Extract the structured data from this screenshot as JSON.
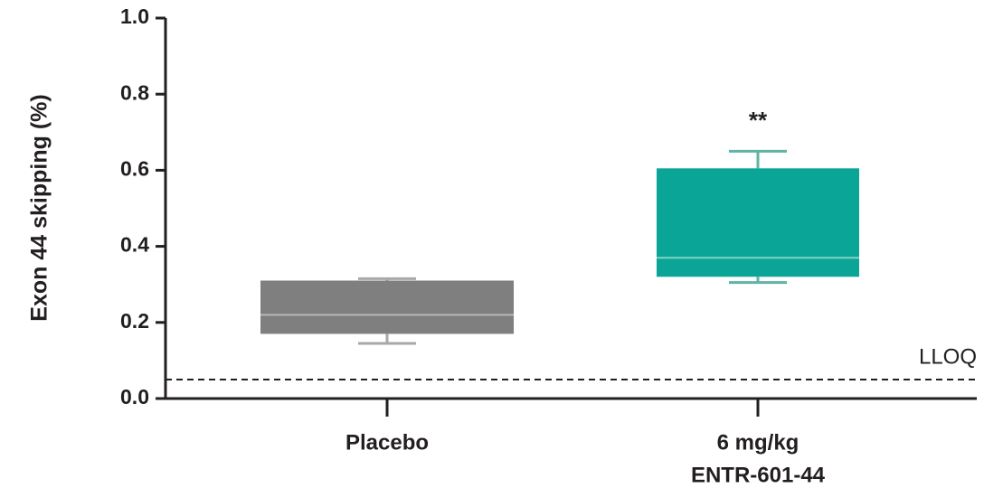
{
  "chart_data": {
    "type": "box",
    "ylabel": "Exon 44 skipping (%)",
    "categories": [
      [
        "Placebo"
      ],
      [
        "6 mg/kg",
        "ENTR-601-44"
      ]
    ],
    "boxes": [
      {
        "min": 0.145,
        "q1": 0.17,
        "median": 0.22,
        "q3": 0.31,
        "max": 0.315,
        "color": "#7f7f7f",
        "whisker_color": "#a8a8a8",
        "median_color": "#b8b8b8"
      },
      {
        "min": 0.305,
        "q1": 0.32,
        "median": 0.37,
        "q3": 0.605,
        "max": 0.65,
        "color": "#0aa596",
        "whisker_color": "#5fb3a7",
        "median_color": "#7fd3c6"
      }
    ],
    "annotations": [
      "**"
    ],
    "reference_line": {
      "value": 0.05,
      "label": "LLOQ"
    },
    "ylim": [
      0,
      1.0
    ],
    "yticks": [
      {
        "value": 0,
        "label": "0.0"
      },
      0.2,
      0.4,
      0.6,
      0.8,
      {
        "value": 1.0,
        "label": "1.0"
      }
    ]
  }
}
